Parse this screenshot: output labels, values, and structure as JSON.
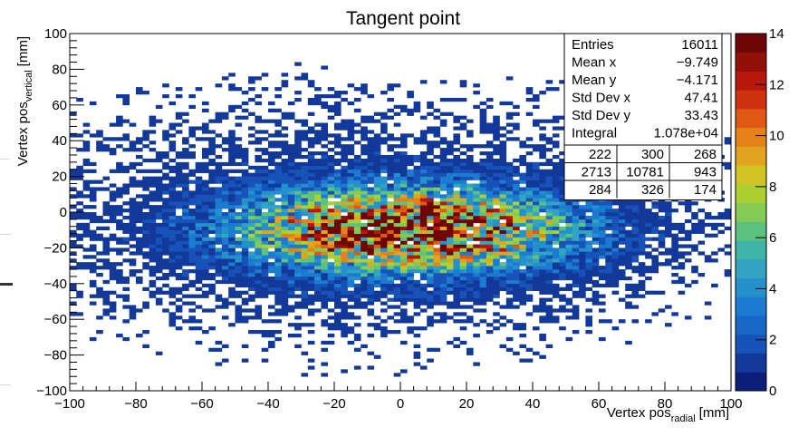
{
  "chart_data": {
    "type": "heatmap",
    "title": "Tangent point",
    "xlabel": {
      "main": "Vertex pos",
      "sub": "radial",
      "unit": "[mm]"
    },
    "ylabel": {
      "main": "Vertex pos",
      "sub": "vertical",
      "unit": "[mm]"
    },
    "xlim": [
      -100,
      100
    ],
    "ylim": [
      -100,
      100
    ],
    "x_ticks": [
      "−100",
      "−80",
      "−60",
      "−40",
      "−20",
      "0",
      "20",
      "40",
      "60",
      "80",
      "100"
    ],
    "x_tick_values": [
      -100,
      -80,
      -60,
      -40,
      -20,
      0,
      20,
      40,
      60,
      80,
      100
    ],
    "y_ticks": [
      "−100",
      "−80",
      "−60",
      "−40",
      "−20",
      "0",
      "20",
      "40",
      "60",
      "80",
      "100"
    ],
    "y_tick_values": [
      -100,
      -80,
      -60,
      -40,
      -20,
      0,
      20,
      40,
      60,
      80,
      100
    ],
    "bins": {
      "nx": 100,
      "ny": 100
    },
    "distribution": {
      "mean_x": -9.749,
      "mean_y": -4.171,
      "std_x": 47.41,
      "std_y": 33.43,
      "core_center": [
        2,
        -10
      ],
      "core_sigma": [
        30,
        14
      ],
      "core_peak": 13.5
    },
    "color_scale": {
      "min": 0,
      "max": 14,
      "ticks": [
        "0",
        "2",
        "4",
        "6",
        "8",
        "10",
        "12",
        "14"
      ],
      "tick_values": [
        0,
        2,
        4,
        6,
        8,
        10,
        12,
        14
      ],
      "colors": [
        "#0b1f7a",
        "#123899",
        "#1652b8",
        "#1767c9",
        "#1a7bd0",
        "#2490cc",
        "#32a3c1",
        "#40b4a7",
        "#5cc27f",
        "#84cb55",
        "#adcf32",
        "#d0c323",
        "#e2a41f",
        "#e58119",
        "#de5a14",
        "#d0320f",
        "#b8170c",
        "#931009",
        "#6e0606"
      ]
    },
    "stats": {
      "rows": [
        {
          "label": "Entries",
          "value": "16011"
        },
        {
          "label": "Mean x",
          "value": "−9.749"
        },
        {
          "label": "Mean y",
          "value": "−4.171"
        },
        {
          "label": "Std Dev x",
          "value": "47.41"
        },
        {
          "label": "Std Dev y",
          "value": "33.43"
        },
        {
          "label": "Integral",
          "value": "1.078e+04"
        }
      ],
      "grid": [
        [
          "222",
          "300",
          "268"
        ],
        [
          "2713",
          "10781",
          "943"
        ],
        [
          "284",
          "326",
          "174"
        ]
      ]
    },
    "grid_lines": false,
    "legend": "color bar right; statistics box top-right"
  }
}
